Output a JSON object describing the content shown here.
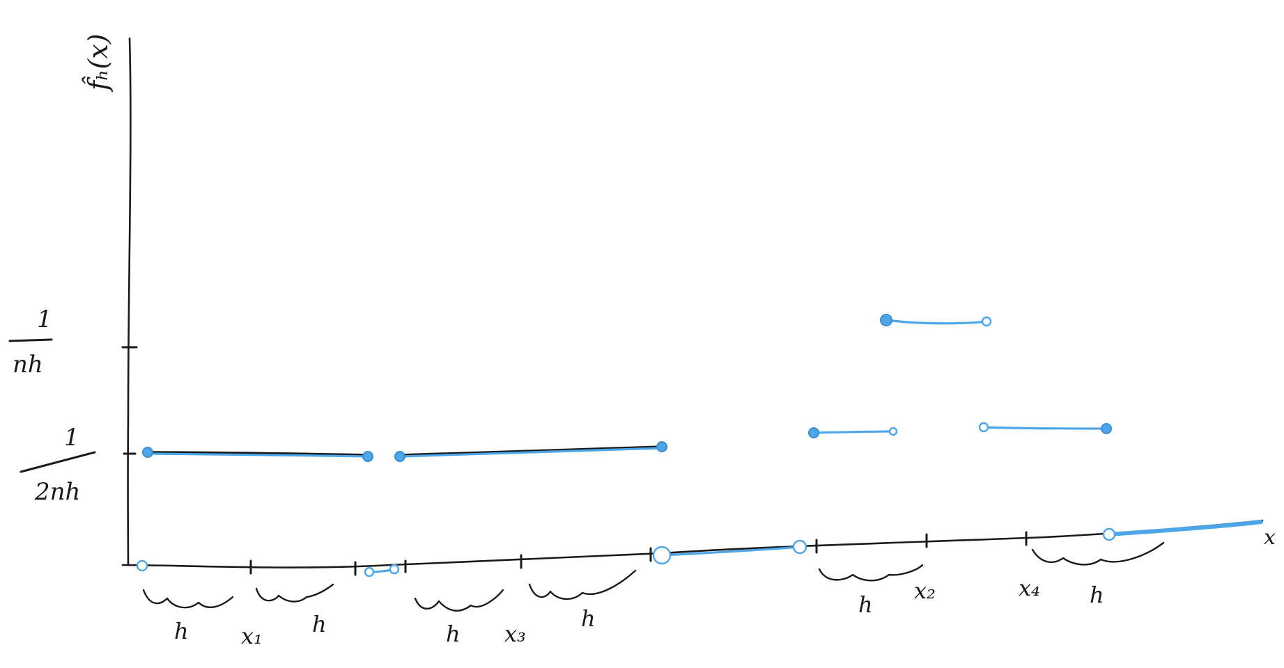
{
  "labels": {
    "y_axis": "f̂ₕ(x)",
    "x_axis": "x",
    "tick_high": {
      "numerator": "1",
      "denominator": "nh"
    },
    "tick_low": {
      "numerator": "1",
      "denominator": "2nh"
    },
    "points": [
      "x₁",
      "x₂",
      "x₃",
      "x₄"
    ],
    "bandwidth": "h"
  },
  "colors": {
    "ink": "#1a1a1a",
    "estimate": "#4da6e8"
  }
}
